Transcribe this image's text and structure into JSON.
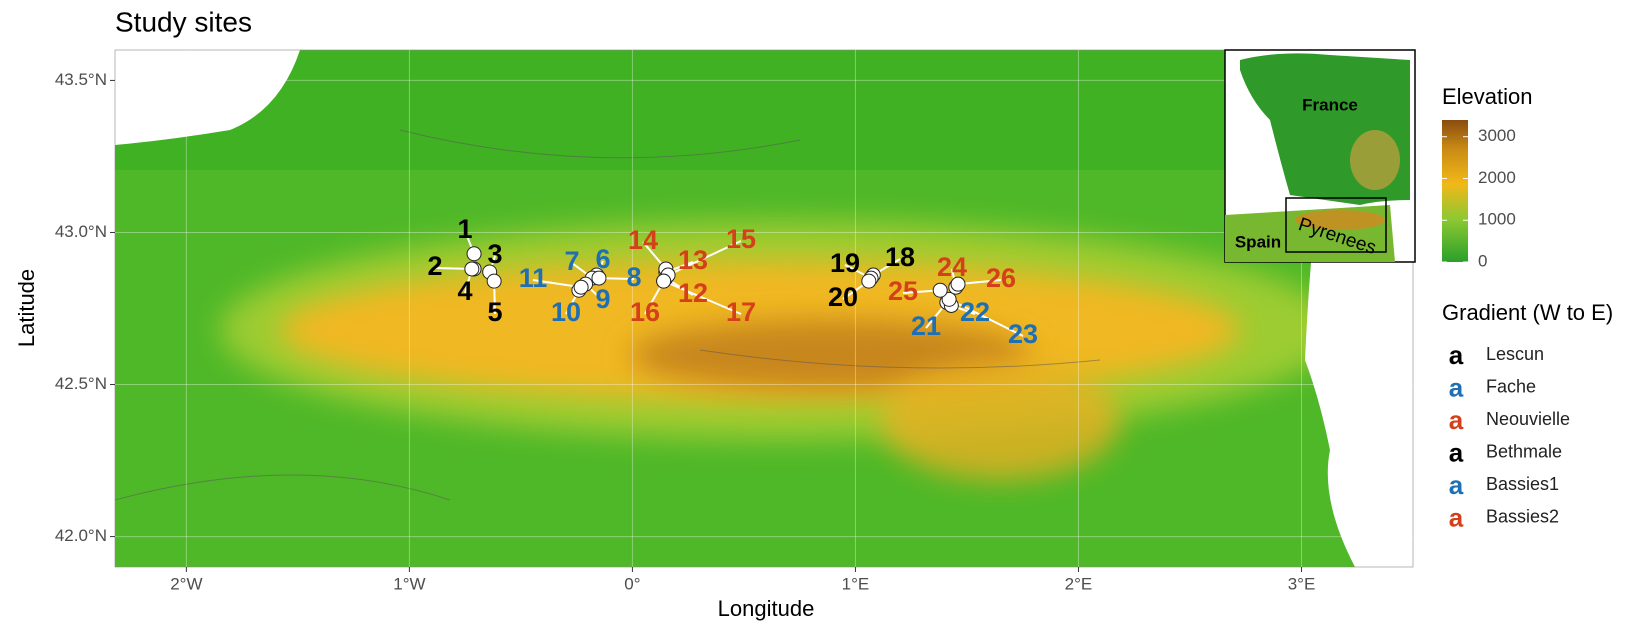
{
  "chart_data": {
    "type": "map",
    "title": "Study sites",
    "x_label": "Longitude",
    "y_label": "Latitude",
    "xlim": [
      -2.32,
      3.5
    ],
    "ylim": [
      41.9,
      43.6
    ],
    "xticks": [
      {
        "value": -2,
        "label": "2°W"
      },
      {
        "value": -1,
        "label": "1°W"
      },
      {
        "value": 0,
        "label": "0°"
      },
      {
        "value": 1,
        "label": "1°E"
      },
      {
        "value": 2,
        "label": "2°E"
      },
      {
        "value": 3,
        "label": "3°E"
      }
    ],
    "yticks": [
      {
        "value": 42.0,
        "label": "42.0°N"
      },
      {
        "value": 42.5,
        "label": "42.5°N"
      },
      {
        "value": 43.0,
        "label": "43.0°N"
      },
      {
        "value": 43.5,
        "label": "43.5°N"
      }
    ],
    "grid": true,
    "elevation_legend": {
      "title": "Elevation",
      "lim": [
        0,
        3400
      ],
      "ticks": [
        0,
        1000,
        2000,
        3000
      ]
    },
    "gradient_legend": {
      "title": "Gradient (W to E)",
      "key": "a",
      "items": [
        {
          "name": "Lescun",
          "color": "#000000"
        },
        {
          "name": "Fache",
          "color": "#1f6fb4"
        },
        {
          "name": "Neouvielle",
          "color": "#d4401a"
        },
        {
          "name": "Bethmale",
          "color": "#000000"
        },
        {
          "name": "Bassies1",
          "color": "#1f6fb4"
        },
        {
          "name": "Bassies2",
          "color": "#d4401a"
        }
      ]
    },
    "inset": {
      "labels": [
        "France",
        "Spain",
        "Pyrenees"
      ]
    },
    "sites": [
      {
        "label": "1",
        "gradient": 0,
        "lon": -0.71,
        "lat": 42.93
      },
      {
        "label": "2",
        "gradient": 0,
        "lon": -0.71,
        "lat": 42.88
      },
      {
        "label": "3",
        "gradient": 0,
        "lon": -0.64,
        "lat": 42.87
      },
      {
        "label": "4",
        "gradient": 0,
        "lon": -0.72,
        "lat": 42.88
      },
      {
        "label": "5",
        "gradient": 0,
        "lon": -0.62,
        "lat": 42.84
      },
      {
        "label": "6",
        "gradient": 1,
        "lon": -0.16,
        "lat": 42.86
      },
      {
        "label": "7",
        "gradient": 1,
        "lon": -0.18,
        "lat": 42.85
      },
      {
        "label": "8",
        "gradient": 1,
        "lon": -0.15,
        "lat": 42.85
      },
      {
        "label": "9",
        "gradient": 1,
        "lon": -0.21,
        "lat": 42.83
      },
      {
        "label": "10",
        "gradient": 1,
        "lon": -0.24,
        "lat": 42.81
      },
      {
        "label": "11",
        "gradient": 1,
        "lon": -0.23,
        "lat": 42.82
      },
      {
        "label": "12",
        "gradient": 2,
        "lon": 0.15,
        "lat": 42.85
      },
      {
        "label": "13",
        "gradient": 2,
        "lon": 0.15,
        "lat": 42.87
      },
      {
        "label": "14",
        "gradient": 2,
        "lon": 0.15,
        "lat": 42.88
      },
      {
        "label": "15",
        "gradient": 2,
        "lon": 0.16,
        "lat": 42.86
      },
      {
        "label": "16",
        "gradient": 2,
        "lon": 0.14,
        "lat": 42.84
      },
      {
        "label": "17",
        "gradient": 2,
        "lon": 0.14,
        "lat": 42.84
      },
      {
        "label": "18",
        "gradient": 3,
        "lon": 1.08,
        "lat": 42.86
      },
      {
        "label": "19",
        "gradient": 3,
        "lon": 1.07,
        "lat": 42.85
      },
      {
        "label": "20",
        "gradient": 3,
        "lon": 1.06,
        "lat": 42.84
      },
      {
        "label": "21",
        "gradient": 4,
        "lon": 1.41,
        "lat": 42.77
      },
      {
        "label": "22",
        "gradient": 4,
        "lon": 1.43,
        "lat": 42.76
      },
      {
        "label": "23",
        "gradient": 4,
        "lon": 1.42,
        "lat": 42.78
      },
      {
        "label": "24",
        "gradient": 5,
        "lon": 1.45,
        "lat": 42.82
      },
      {
        "label": "25",
        "gradient": 5,
        "lon": 1.38,
        "lat": 42.81
      },
      {
        "label": "26",
        "gradient": 5,
        "lon": 1.46,
        "lat": 42.83
      }
    ]
  }
}
